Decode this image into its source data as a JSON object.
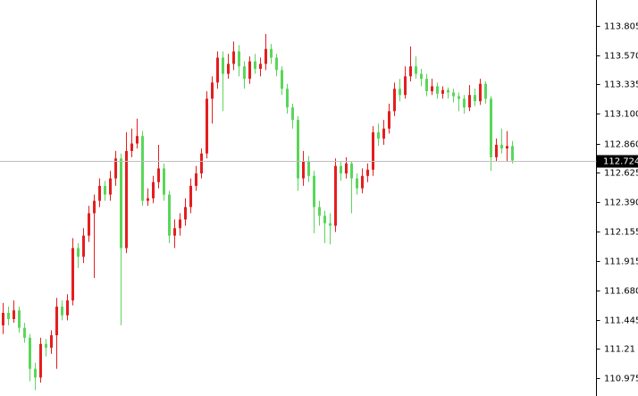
{
  "chart_data": {
    "type": "candlestick",
    "up_color": "#e41e1e",
    "down_color": "#5ad65a",
    "open": [
      111.4,
      111.5,
      111.45,
      111.52,
      111.38,
      111.3,
      111.05,
      110.98,
      111.25,
      111.22,
      111.32,
      111.55,
      111.48,
      111.6,
      112.02,
      111.95,
      112.12,
      112.3,
      112.4,
      112.52,
      112.45,
      112.58,
      112.74,
      112.02,
      112.8,
      112.86,
      112.92,
      112.4,
      112.42,
      112.55,
      112.66,
      112.45,
      112.12,
      112.18,
      112.25,
      112.35,
      112.52,
      112.62,
      112.78,
      113.22,
      113.35,
      113.55,
      113.42,
      113.5,
      113.6,
      113.48,
      113.38,
      113.52,
      113.46,
      113.5,
      113.62,
      113.55,
      113.45,
      113.3,
      113.15,
      113.05,
      112.58,
      112.72,
      112.6,
      112.35,
      112.28,
      112.22,
      112.2,
      112.68,
      112.62,
      112.7,
      112.58,
      112.5,
      112.6,
      112.65,
      112.95,
      112.9,
      112.98,
      113.12,
      113.3,
      113.25,
      113.4,
      113.48,
      113.42,
      113.38,
      113.28,
      113.32,
      113.26,
      113.29,
      113.27,
      113.24,
      113.22,
      113.15,
      113.25,
      113.2,
      113.34,
      113.22,
      112.75,
      112.85,
      112.82,
      112.84
    ],
    "high": [
      111.58,
      111.55,
      111.6,
      111.55,
      111.42,
      111.33,
      111.1,
      111.3,
      111.29,
      111.36,
      111.62,
      111.6,
      111.65,
      112.1,
      112.06,
      112.18,
      112.36,
      112.45,
      112.58,
      112.56,
      112.64,
      112.8,
      112.78,
      112.95,
      112.98,
      113.06,
      112.96,
      112.5,
      112.6,
      112.85,
      112.7,
      112.48,
      112.25,
      112.3,
      112.42,
      112.58,
      112.68,
      112.82,
      113.28,
      113.4,
      113.6,
      113.6,
      113.58,
      113.68,
      113.65,
      113.52,
      113.56,
      113.58,
      113.55,
      113.74,
      113.66,
      113.58,
      113.48,
      113.34,
      113.18,
      113.08,
      112.8,
      112.76,
      112.64,
      112.4,
      112.32,
      112.3,
      112.74,
      112.72,
      112.75,
      112.72,
      112.62,
      112.66,
      112.7,
      113.0,
      113.02,
      113.05,
      113.18,
      113.35,
      113.38,
      113.48,
      113.64,
      113.56,
      113.46,
      113.42,
      113.38,
      113.35,
      113.32,
      113.31,
      113.3,
      113.27,
      113.25,
      113.33,
      113.3,
      113.38,
      113.36,
      113.24,
      112.9,
      112.98,
      112.96,
      112.88
    ],
    "low": [
      111.33,
      111.4,
      111.42,
      111.34,
      111.26,
      110.95,
      110.88,
      110.94,
      111.15,
      111.17,
      111.05,
      111.44,
      111.44,
      111.56,
      111.86,
      111.9,
      112.07,
      111.78,
      112.35,
      112.4,
      112.4,
      112.52,
      111.4,
      111.98,
      112.75,
      112.82,
      112.36,
      112.36,
      112.38,
      112.5,
      112.4,
      112.06,
      112.02,
      112.12,
      112.2,
      112.3,
      112.48,
      112.58,
      112.74,
      113.02,
      113.3,
      113.12,
      113.38,
      113.45,
      113.4,
      113.3,
      113.34,
      113.42,
      113.4,
      113.45,
      113.5,
      113.4,
      113.25,
      113.1,
      112.98,
      112.48,
      112.52,
      112.55,
      112.14,
      112.2,
      112.06,
      112.05,
      112.15,
      112.56,
      112.58,
      112.3,
      112.45,
      112.46,
      112.55,
      112.6,
      112.84,
      112.85,
      112.94,
      113.08,
      113.2,
      113.22,
      113.36,
      113.38,
      113.32,
      113.24,
      113.25,
      113.22,
      113.22,
      113.22,
      113.19,
      113.12,
      113.1,
      113.12,
      113.16,
      113.17,
      113.18,
      112.64,
      112.72,
      112.78,
      112.72,
      112.7
    ],
    "close": [
      111.5,
      111.45,
      111.52,
      111.38,
      111.3,
      111.05,
      110.98,
      111.25,
      111.22,
      111.32,
      111.55,
      111.48,
      111.6,
      112.02,
      111.95,
      112.12,
      112.3,
      112.4,
      112.52,
      112.45,
      112.58,
      112.74,
      112.02,
      112.8,
      112.86,
      112.92,
      112.4,
      112.42,
      112.55,
      112.66,
      112.45,
      112.12,
      112.18,
      112.25,
      112.35,
      112.52,
      112.62,
      112.78,
      113.22,
      113.35,
      113.55,
      113.42,
      113.5,
      113.6,
      113.48,
      113.38,
      113.52,
      113.46,
      113.5,
      113.62,
      113.55,
      113.45,
      113.3,
      113.15,
      113.05,
      112.58,
      112.72,
      112.6,
      112.35,
      112.28,
      112.22,
      112.2,
      112.68,
      112.62,
      112.7,
      112.58,
      112.5,
      112.6,
      112.65,
      112.95,
      112.9,
      112.98,
      113.12,
      113.3,
      113.25,
      113.4,
      113.48,
      113.42,
      113.38,
      113.28,
      113.32,
      113.26,
      113.29,
      113.27,
      113.24,
      113.22,
      113.15,
      113.25,
      113.2,
      113.34,
      113.22,
      112.75,
      112.85,
      112.82,
      112.84,
      112.724
    ],
    "ylim": [
      110.832,
      114.013
    ],
    "yticks": [
      113.805,
      {
        "value": 113.57,
        "label": "113.570"
      },
      113.335,
      {
        "value": 113.1,
        "label": "113.100"
      },
      {
        "value": 112.86,
        "label": "112.860"
      },
      112.625,
      {
        "value": 112.39,
        "label": "112.390"
      },
      112.155,
      111.915,
      {
        "value": 111.68,
        "label": "111.680"
      },
      111.445,
      111.21,
      110.975
    ],
    "last_price": 112.724
  }
}
